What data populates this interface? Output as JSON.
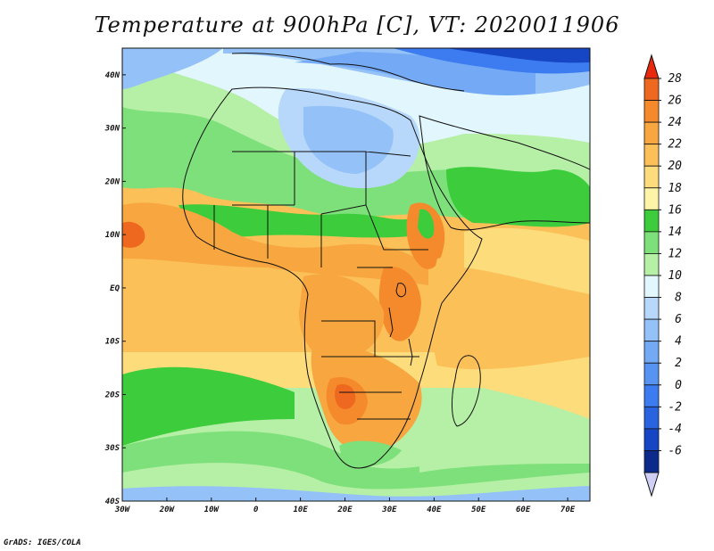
{
  "title": "Temperature at 900hPa [C], VT: 2020011906",
  "credit": "GrADS: IGES/COLA",
  "map": {
    "lon_range": [
      -30,
      75
    ],
    "lat_range": [
      -40,
      45
    ],
    "lon_ticks": [
      {
        "value": -30,
        "label": "30W"
      },
      {
        "value": -20,
        "label": "20W"
      },
      {
        "value": -10,
        "label": "10W"
      },
      {
        "value": 0,
        "label": "0"
      },
      {
        "value": 10,
        "label": "10E"
      },
      {
        "value": 20,
        "label": "20E"
      },
      {
        "value": 30,
        "label": "30E"
      },
      {
        "value": 40,
        "label": "40E"
      },
      {
        "value": 50,
        "label": "50E"
      },
      {
        "value": 60,
        "label": "60E"
      },
      {
        "value": 70,
        "label": "70E"
      }
    ],
    "lat_ticks": [
      {
        "value": 40,
        "label": "40N"
      },
      {
        "value": 30,
        "label": "30N"
      },
      {
        "value": 20,
        "label": "20N"
      },
      {
        "value": 10,
        "label": "10N"
      },
      {
        "value": 0,
        "label": "EQ"
      },
      {
        "value": -10,
        "label": "10S"
      },
      {
        "value": -20,
        "label": "20S"
      },
      {
        "value": -30,
        "label": "30S"
      },
      {
        "value": -40,
        "label": "40S"
      }
    ]
  },
  "colorbar": {
    "min_color": "#cfcff5",
    "max_color": "#e8290e",
    "levels": [
      {
        "value": -6,
        "label": "-6",
        "color": "#0b2a8c"
      },
      {
        "value": -4,
        "label": "-4",
        "color": "#1646c4"
      },
      {
        "value": -2,
        "label": "-2",
        "color": "#2a63e0"
      },
      {
        "value": 0,
        "label": "0",
        "color": "#3c7cf0"
      },
      {
        "value": 2,
        "label": "2",
        "color": "#5794f2"
      },
      {
        "value": 4,
        "label": "4",
        "color": "#74aaf5"
      },
      {
        "value": 6,
        "label": "6",
        "color": "#94c2f8"
      },
      {
        "value": 8,
        "label": "8",
        "color": "#b8d8fb"
      },
      {
        "value": 10,
        "label": "10",
        "color": "#e2f6fe"
      },
      {
        "value": 12,
        "label": "12",
        "color": "#b6f0a6"
      },
      {
        "value": 14,
        "label": "14",
        "color": "#7ee07a"
      },
      {
        "value": 16,
        "label": "16",
        "color": "#3ccc3c"
      },
      {
        "value": 18,
        "label": "18",
        "color": "#fdf4a8"
      },
      {
        "value": 20,
        "label": "20",
        "color": "#fddc7c"
      },
      {
        "value": 22,
        "label": "22",
        "color": "#fcc058"
      },
      {
        "value": 24,
        "label": "24",
        "color": "#f8a640"
      },
      {
        "value": 26,
        "label": "26",
        "color": "#f58a2c"
      },
      {
        "value": 28,
        "label": "28",
        "color": "#ee6820"
      }
    ]
  }
}
